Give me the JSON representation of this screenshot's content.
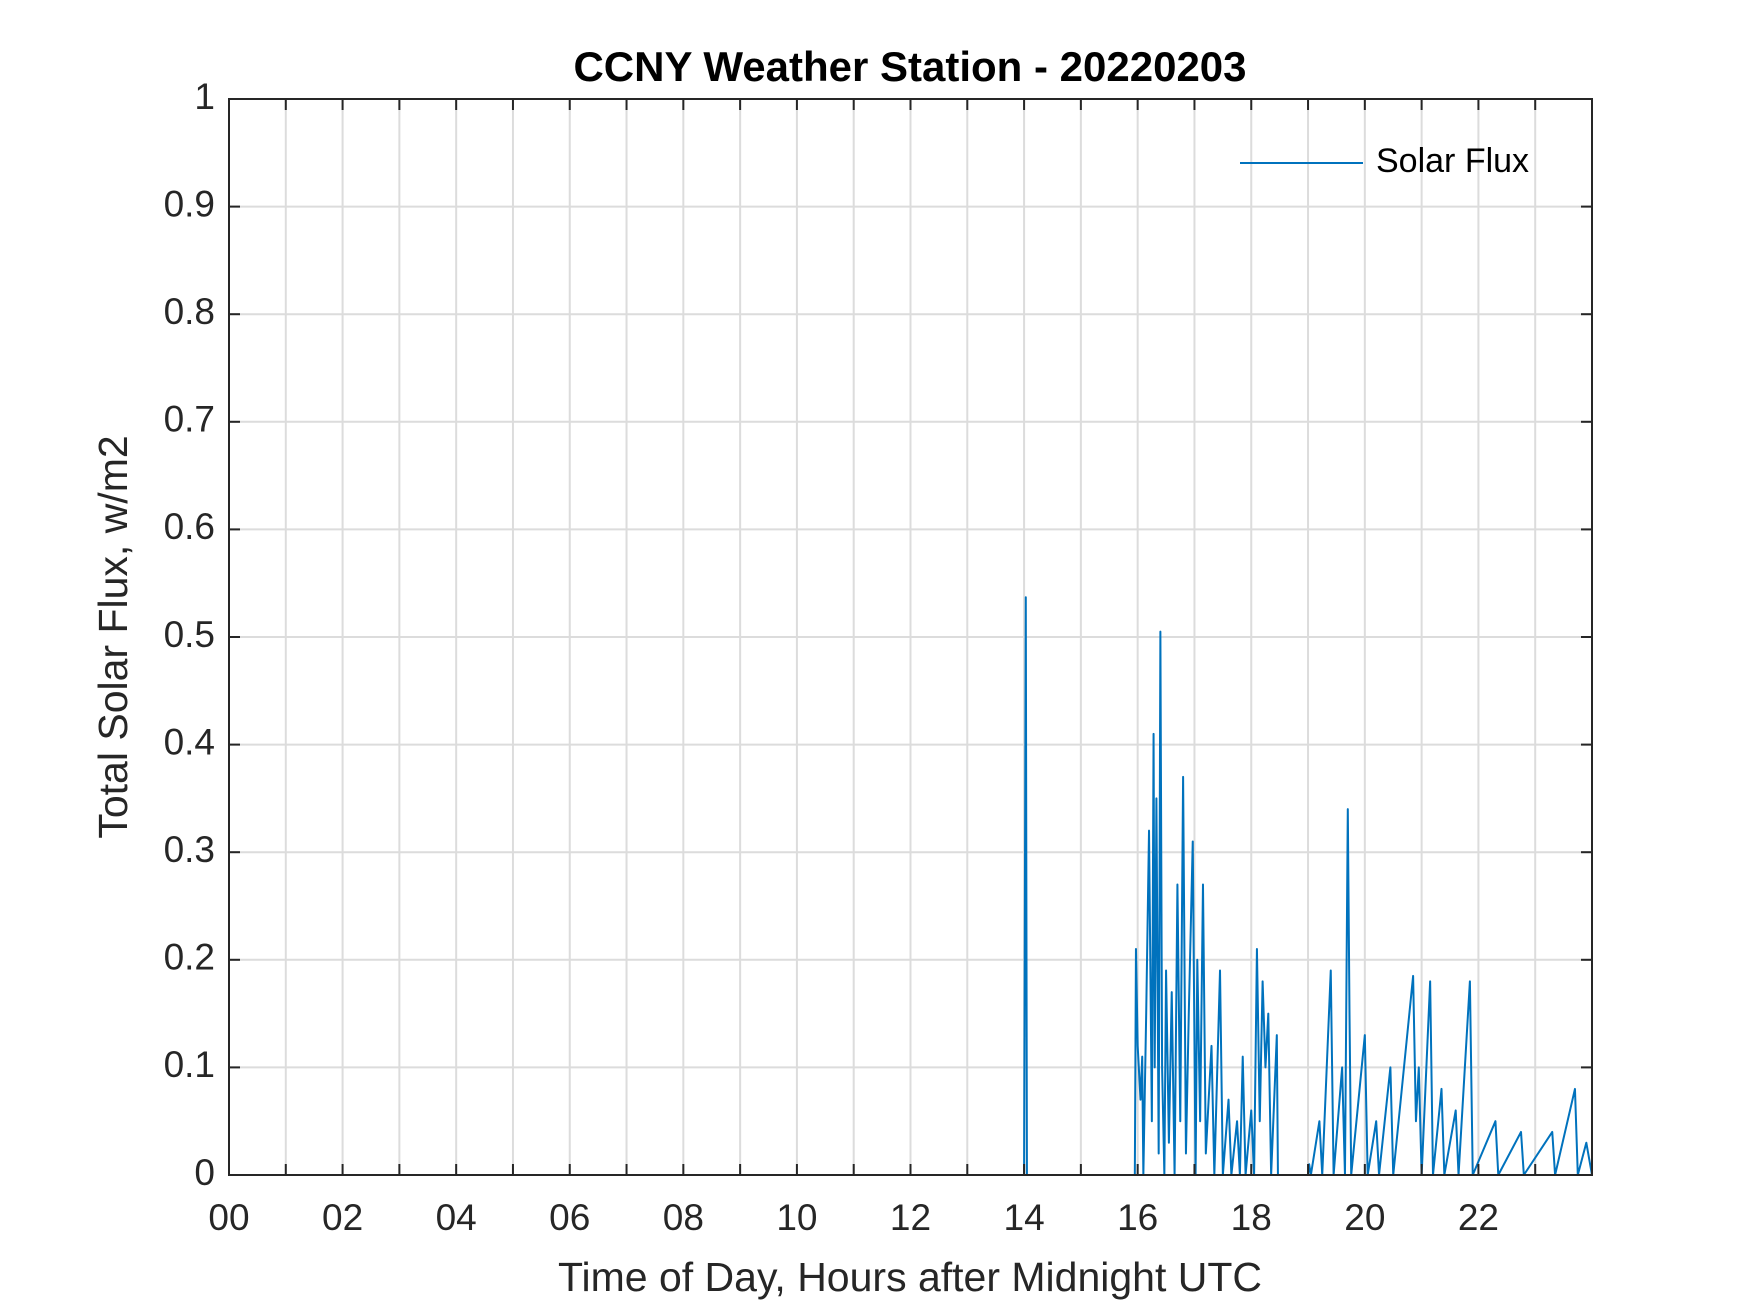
{
  "chart_data": {
    "type": "line",
    "title": "CCNY Weather Station - 20220203",
    "xlabel": "Time of Day, Hours after Midnight UTC",
    "ylabel": "Total Solar Flux, w/m2",
    "xlim": [
      0,
      24
    ],
    "ylim": [
      0,
      1
    ],
    "xticks": [
      {
        "value": 0,
        "label": "00"
      },
      {
        "value": 2,
        "label": "02"
      },
      {
        "value": 4,
        "label": "04"
      },
      {
        "value": 6,
        "label": "06"
      },
      {
        "value": 8,
        "label": "08"
      },
      {
        "value": 10,
        "label": "10"
      },
      {
        "value": 12,
        "label": "12"
      },
      {
        "value": 14,
        "label": "14"
      },
      {
        "value": 16,
        "label": "16"
      },
      {
        "value": 18,
        "label": "18"
      },
      {
        "value": 20,
        "label": "20"
      },
      {
        "value": 22,
        "label": "22"
      }
    ],
    "xminorticks": [
      1,
      3,
      5,
      7,
      9,
      11,
      13,
      15,
      17,
      19,
      21,
      23
    ],
    "yticks": [
      0,
      0.1,
      0.2,
      0.3,
      0.4,
      0.5,
      0.6,
      0.7,
      0.8,
      0.9,
      1
    ],
    "grid": true,
    "legend": "upper right",
    "series": [
      {
        "name": "Solar Flux",
        "color": "#0072bd",
        "x": [
          0,
          14.0,
          14.03,
          14.05,
          15.95,
          15.97,
          16.0,
          16.05,
          16.08,
          16.1,
          16.15,
          16.2,
          16.25,
          16.28,
          16.3,
          16.33,
          16.37,
          16.4,
          16.43,
          16.47,
          16.5,
          16.55,
          16.6,
          16.65,
          16.7,
          16.75,
          16.8,
          16.85,
          16.9,
          16.97,
          17.02,
          17.05,
          17.1,
          17.15,
          17.2,
          17.3,
          17.35,
          17.45,
          17.5,
          17.6,
          17.65,
          17.75,
          17.8,
          17.85,
          17.9,
          18.0,
          18.05,
          18.1,
          18.15,
          18.2,
          18.25,
          18.3,
          18.35,
          18.45,
          18.47,
          19.0,
          19.02,
          19.05,
          19.2,
          19.25,
          19.4,
          19.45,
          19.6,
          19.65,
          19.7,
          19.73,
          19.76,
          20.0,
          20.05,
          20.2,
          20.25,
          20.45,
          20.5,
          20.85,
          20.9,
          20.95,
          21.0,
          21.15,
          21.2,
          21.35,
          21.4,
          21.6,
          21.65,
          21.85,
          21.9,
          22.3,
          22.35,
          22.75,
          22.8,
          23.3,
          23.35,
          23.7,
          23.75,
          23.9,
          24
        ],
        "values": [
          0,
          0,
          0.537,
          0,
          0,
          0.21,
          0.12,
          0.07,
          0.11,
          0,
          0.15,
          0.32,
          0.05,
          0.41,
          0.1,
          0.35,
          0.02,
          0.505,
          0.1,
          0,
          0.19,
          0.03,
          0.17,
          0,
          0.27,
          0.05,
          0.37,
          0.02,
          0.15,
          0.31,
          0,
          0.2,
          0.05,
          0.27,
          0.02,
          0.12,
          0,
          0.19,
          0,
          0.07,
          0,
          0.05,
          0,
          0.11,
          0,
          0.06,
          0,
          0.21,
          0.05,
          0.18,
          0.1,
          0.15,
          0,
          0.13,
          0,
          0,
          0.01,
          0,
          0.05,
          0,
          0.19,
          0,
          0.1,
          0,
          0.34,
          0.15,
          0,
          0.13,
          0,
          0.05,
          0,
          0.1,
          0,
          0.185,
          0.05,
          0.1,
          0,
          0.18,
          0,
          0.08,
          0,
          0.06,
          0,
          0.18,
          0,
          0.05,
          0,
          0.04,
          0,
          0.04,
          0,
          0.08,
          0,
          0.03,
          0
        ]
      }
    ]
  }
}
